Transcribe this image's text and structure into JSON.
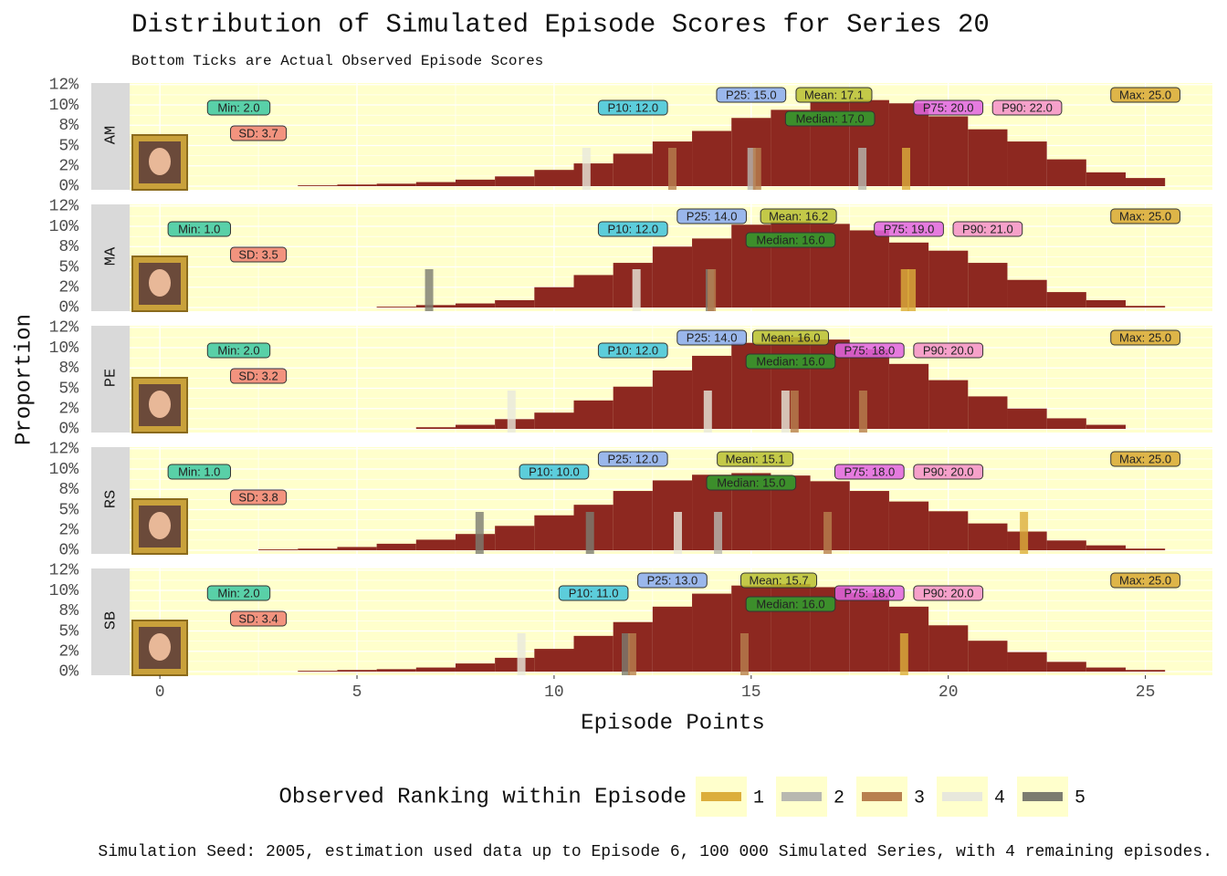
{
  "chart_data": {
    "type": "histogram",
    "title": "Distribution of Simulated Episode Scores for Series 20",
    "subtitle": "Bottom Ticks are Actual Observed Episode Scores",
    "x_label": "Episode Points",
    "y_label": "Proportion",
    "color": "#8d2820",
    "grid": true,
    "xlim": [
      -1.74,
      26.7
    ],
    "xticks": [
      0,
      5,
      10,
      15,
      20,
      25
    ],
    "ylim": [
      -0.45,
      12.7
    ],
    "yticks": [
      {
        "value": 0,
        "label": "0%"
      },
      {
        "value": 2.5,
        "label": "2%"
      },
      {
        "value": 5,
        "label": "5%"
      },
      {
        "value": 7.5,
        "label": "8%"
      },
      {
        "value": 10,
        "label": "10%"
      },
      {
        "value": 12.5,
        "label": "12%"
      }
    ],
    "facets": [
      {
        "name": "AM",
        "bins": [
          3.5,
          4.5,
          5.5,
          6.5,
          7.5,
          8.5,
          9.5,
          10.5,
          11.5,
          12.5,
          13.5,
          14.5,
          15.5,
          16.5,
          17.5,
          18.5,
          19.5,
          20.5,
          21.5,
          22.5,
          23.5,
          24.5,
          25.5
        ],
        "values": [
          0.1,
          0.2,
          0.3,
          0.5,
          0.8,
          1.2,
          2.0,
          2.8,
          4.0,
          5.5,
          6.8,
          8.4,
          9.4,
          10.4,
          10.6,
          10.2,
          8.6,
          7.0,
          5.5,
          3.3,
          1.7,
          1.0
        ],
        "stats": [
          {
            "label": "Min: 2.0",
            "value": 2.0,
            "color": "#3cc8a0"
          },
          {
            "label": "SD: 3.7",
            "color": "#f08070"
          },
          {
            "label": "P10: 12.0",
            "value": 12.0,
            "color": "#40c4dc"
          },
          {
            "label": "P25: 15.0",
            "value": 15.0,
            "color": "#88aaf0"
          },
          {
            "label": "Mean: 17.1",
            "value": 17.1,
            "color": "#b8c030"
          },
          {
            "label": "Median: 17.0",
            "value": 17.0,
            "color": "#2ea02e"
          },
          {
            "label": "P75: 20.0",
            "value": 20.0,
            "color": "#e064e0"
          },
          {
            "label": "P90: 22.0",
            "value": 22.0,
            "color": "#f490c8"
          },
          {
            "label": "Max: 25.0",
            "value": 25.0,
            "color": "#d8a830"
          }
        ],
        "observed": [
          {
            "x": 10.82,
            "rank": 4
          },
          {
            "x": 13.0,
            "rank": 3
          },
          {
            "x": 15.01,
            "rank": 2
          },
          {
            "x": 15.15,
            "rank": 3
          },
          {
            "x": 17.82,
            "rank": 2
          },
          {
            "x": 18.93,
            "rank": 1
          }
        ]
      },
      {
        "name": "MA",
        "bins": [
          5.5,
          6.5,
          7.5,
          8.5,
          9.5,
          10.5,
          11.5,
          12.5,
          13.5,
          14.5,
          15.5,
          16.5,
          17.5,
          18.5,
          19.5,
          20.5,
          21.5,
          22.5,
          23.5,
          24.5,
          25.5
        ],
        "values": [
          0.1,
          0.3,
          0.5,
          0.9,
          2.5,
          4.0,
          5.5,
          7.5,
          8.5,
          10.2,
          10.6,
          10.3,
          9.5,
          8.0,
          7.0,
          5.5,
          3.4,
          1.9,
          0.9,
          0.2
        ],
        "stats": [
          {
            "label": "Min: 1.0",
            "value": 1.0,
            "color": "#3cc8a0"
          },
          {
            "label": "SD: 3.5",
            "color": "#f08070"
          },
          {
            "label": "P10: 12.0",
            "value": 12.0,
            "color": "#40c4dc"
          },
          {
            "label": "P25: 14.0",
            "value": 14.0,
            "color": "#88aaf0"
          },
          {
            "label": "Mean: 16.2",
            "value": 16.2,
            "color": "#b8c030"
          },
          {
            "label": "Median: 16.0",
            "value": 16.0,
            "color": "#2ea02e"
          },
          {
            "label": "P75: 19.0",
            "value": 19.0,
            "color": "#e064e0"
          },
          {
            "label": "P90: 21.0",
            "value": 21.0,
            "color": "#f490c8"
          },
          {
            "label": "Max: 25.0",
            "value": 25.0,
            "color": "#d8a830"
          }
        ],
        "observed": [
          {
            "x": 6.83,
            "rank": 5
          },
          {
            "x": 12.09,
            "rank": 4
          },
          {
            "x": 13.95,
            "rank": 5
          },
          {
            "x": 14.0,
            "rank": 3
          },
          {
            "x": 18.9,
            "rank": 1
          },
          {
            "x": 19.07,
            "rank": 1
          }
        ]
      },
      {
        "name": "PE",
        "bins": [
          6.5,
          7.5,
          8.5,
          9.5,
          10.5,
          11.5,
          12.5,
          13.5,
          14.5,
          15.5,
          16.5,
          17.5,
          18.5,
          19.5,
          20.5,
          21.5,
          22.5,
          23.5,
          24.5
        ],
        "values": [
          0.2,
          0.5,
          1.2,
          2.0,
          3.5,
          5.2,
          7.2,
          9.0,
          10.6,
          11.3,
          11.0,
          9.8,
          8.0,
          6.0,
          4.0,
          2.5,
          1.3,
          0.5
        ],
        "stats": [
          {
            "label": "Min: 2.0",
            "value": 2.0,
            "color": "#3cc8a0"
          },
          {
            "label": "SD: 3.2",
            "color": "#f08070"
          },
          {
            "label": "P10: 12.0",
            "value": 12.0,
            "color": "#40c4dc"
          },
          {
            "label": "P25: 14.0",
            "value": 14.0,
            "color": "#88aaf0"
          },
          {
            "label": "Mean: 16.0",
            "value": 16.0,
            "color": "#b8c030"
          },
          {
            "label": "Median: 16.0",
            "value": 16.0,
            "color": "#2ea02e"
          },
          {
            "label": "P75: 18.0",
            "value": 18.0,
            "color": "#e064e0"
          },
          {
            "label": "P90: 20.0",
            "value": 20.0,
            "color": "#f490c8"
          },
          {
            "label": "Max: 25.0",
            "value": 25.0,
            "color": "#d8a830"
          }
        ],
        "observed": [
          {
            "x": 8.92,
            "rank": 4
          },
          {
            "x": 13.9,
            "rank": 4
          },
          {
            "x": 15.87,
            "rank": 4
          },
          {
            "x": 16.1,
            "rank": 3
          },
          {
            "x": 17.84,
            "rank": 3
          }
        ]
      },
      {
        "name": "RS",
        "bins": [
          2.5,
          3.5,
          4.5,
          5.5,
          6.5,
          7.5,
          8.5,
          9.5,
          10.5,
          11.5,
          12.5,
          13.5,
          14.5,
          15.5,
          16.5,
          17.5,
          18.5,
          19.5,
          20.5,
          21.5,
          22.5,
          23.5,
          24.5,
          25.5
        ],
        "values": [
          0.1,
          0.2,
          0.4,
          0.8,
          1.3,
          2.0,
          3.0,
          4.3,
          5.6,
          7.3,
          8.6,
          9.3,
          9.5,
          9.2,
          8.5,
          7.3,
          6.0,
          4.8,
          3.3,
          2.3,
          1.2,
          0.6,
          0.2
        ],
        "stats": [
          {
            "label": "Min: 1.0",
            "value": 1.0,
            "color": "#3cc8a0"
          },
          {
            "label": "SD: 3.8",
            "color": "#f08070"
          },
          {
            "label": "P10: 10.0",
            "value": 10.0,
            "color": "#40c4dc"
          },
          {
            "label": "P25: 12.0",
            "value": 12.0,
            "color": "#88aaf0"
          },
          {
            "label": "Mean: 15.1",
            "value": 15.1,
            "color": "#b8c030"
          },
          {
            "label": "Median: 15.0",
            "value": 15.0,
            "color": "#2ea02e"
          },
          {
            "label": "P75: 18.0",
            "value": 18.0,
            "color": "#e064e0"
          },
          {
            "label": "P90: 20.0",
            "value": 20.0,
            "color": "#f490c8"
          },
          {
            "label": "Max: 25.0",
            "value": 25.0,
            "color": "#d8a830"
          }
        ],
        "observed": [
          {
            "x": 8.11,
            "rank": 5
          },
          {
            "x": 10.91,
            "rank": 5
          },
          {
            "x": 13.14,
            "rank": 4
          },
          {
            "x": 14.16,
            "rank": 2
          },
          {
            "x": 16.94,
            "rank": 3
          },
          {
            "x": 21.92,
            "rank": 1
          }
        ]
      },
      {
        "name": "SB",
        "bins": [
          3.5,
          4.5,
          5.5,
          6.5,
          7.5,
          8.5,
          9.5,
          10.5,
          11.5,
          12.5,
          13.5,
          14.5,
          15.5,
          16.5,
          17.5,
          18.5,
          19.5,
          20.5,
          21.5,
          22.5,
          23.5,
          24.5,
          25.5
        ],
        "values": [
          0.1,
          0.2,
          0.3,
          0.5,
          1.0,
          1.7,
          2.8,
          4.4,
          6.1,
          8.0,
          9.6,
          10.6,
          10.8,
          10.4,
          9.7,
          8.0,
          5.7,
          3.8,
          2.4,
          1.2,
          0.5,
          0.2
        ],
        "stats": [
          {
            "label": "Min: 2.0",
            "value": 2.0,
            "color": "#3cc8a0"
          },
          {
            "label": "SD: 3.4",
            "color": "#f08070"
          },
          {
            "label": "P10: 11.0",
            "value": 11.0,
            "color": "#40c4dc"
          },
          {
            "label": "P25: 13.0",
            "value": 13.0,
            "color": "#88aaf0"
          },
          {
            "label": "Mean: 15.7",
            "value": 15.7,
            "color": "#b8c030"
          },
          {
            "label": "Median: 16.0",
            "value": 16.0,
            "color": "#2ea02e"
          },
          {
            "label": "P75: 18.0",
            "value": 18.0,
            "color": "#e064e0"
          },
          {
            "label": "P90: 20.0",
            "value": 20.0,
            "color": "#f490c8"
          },
          {
            "label": "Max: 25.0",
            "value": 25.0,
            "color": "#d8a830"
          }
        ],
        "observed": [
          {
            "x": 9.17,
            "rank": 4
          },
          {
            "x": 11.82,
            "rank": 5
          },
          {
            "x": 11.98,
            "rank": 3
          },
          {
            "x": 14.83,
            "rank": 3
          },
          {
            "x": 18.88,
            "rank": 1
          }
        ]
      }
    ],
    "legend": {
      "title": "Observed Ranking within Episode",
      "ranks": [
        1,
        2,
        3,
        4,
        5
      ],
      "colors": [
        "#dcae3c",
        "#b8b8b0",
        "#b8804f",
        "#e8e8dc",
        "#7c7c70"
      ]
    },
    "caption": "Simulation Seed: 2005, estimation used data up to Episode 6, 100 000 Simulated Series, with 4 remaining episodes."
  }
}
